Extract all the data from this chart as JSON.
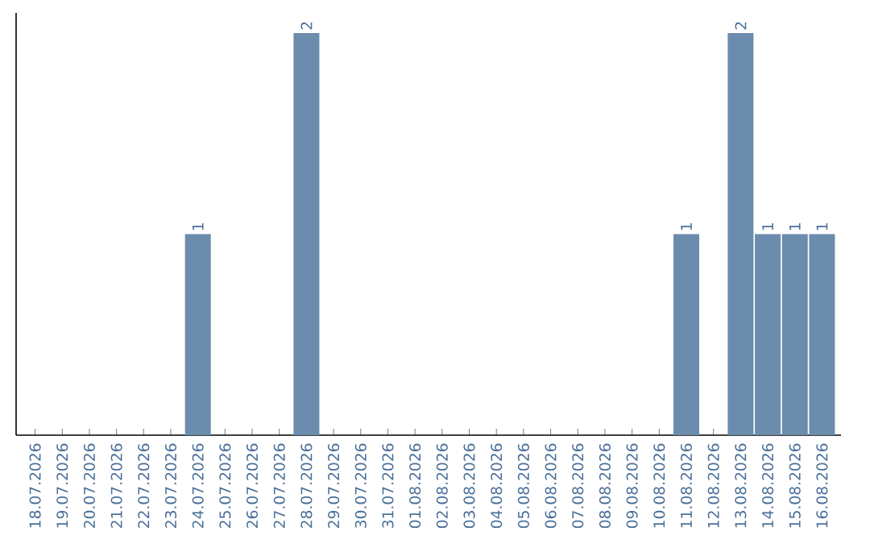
{
  "chart_data": {
    "type": "bar",
    "categories": [
      "18.07.2026",
      "19.07.2026",
      "20.07.2026",
      "21.07.2026",
      "22.07.2026",
      "23.07.2026",
      "24.07.2026",
      "25.07.2026",
      "26.07.2026",
      "27.07.2026",
      "28.07.2026",
      "29.07.2026",
      "30.07.2026",
      "31.07.2026",
      "01.08.2026",
      "02.08.2026",
      "03.08.2026",
      "04.08.2026",
      "05.08.2026",
      "06.08.2026",
      "07.08.2026",
      "08.08.2026",
      "09.08.2026",
      "10.08.2026",
      "11.08.2026",
      "12.08.2026",
      "13.08.2026",
      "14.08.2026",
      "15.08.2026",
      "16.08.2026"
    ],
    "values": [
      0,
      0,
      0,
      0,
      0,
      0,
      1,
      0,
      0,
      0,
      2,
      0,
      0,
      0,
      0,
      0,
      0,
      0,
      0,
      0,
      0,
      0,
      0,
      0,
      1,
      0,
      2,
      1,
      1,
      1
    ],
    "value_labels": [
      null,
      null,
      null,
      null,
      null,
      null,
      "1",
      null,
      null,
      null,
      "2",
      null,
      null,
      null,
      null,
      null,
      null,
      null,
      null,
      null,
      null,
      null,
      null,
      null,
      "1",
      null,
      "2",
      "1",
      "1",
      "1"
    ],
    "color": "#6b8cad"
  }
}
